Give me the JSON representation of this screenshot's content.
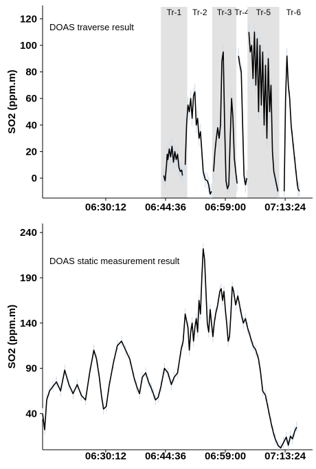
{
  "chart_data": [
    {
      "type": "line",
      "title": "",
      "annotation": "DOAS traverse result",
      "ylabel": "SO2 (ppm.m)",
      "xlabel": "",
      "ylim": [
        -15,
        130
      ],
      "y_ticks": [
        0,
        20,
        40,
        60,
        80,
        100,
        120
      ],
      "x_ticks": [
        "06:30:12",
        "06:44:36",
        "06:59:00",
        "07:13:24"
      ],
      "x_tick_seconds": [
        23412,
        24276,
        25140,
        26004
      ],
      "xlim_seconds": [
        22500,
        26400
      ],
      "traverses": [
        {
          "label": "Tr-1",
          "start": 24210,
          "end": 24590,
          "shaded": true
        },
        {
          "label": "Tr-2",
          "start": 24590,
          "end": 24950,
          "shaded": false
        },
        {
          "label": "Tr-3",
          "start": 24950,
          "end": 25300,
          "shaded": true
        },
        {
          "label": "Tr-4",
          "start": 25300,
          "end": 25460,
          "shaded": false
        },
        {
          "label": "Tr-5",
          "start": 25460,
          "end": 25920,
          "shaded": true
        },
        {
          "label": "Tr-6",
          "start": 25920,
          "end": 26330,
          "shaded": false
        }
      ],
      "series": [
        {
          "segments": [
            [
              [
                24250,
                2
              ],
              [
                24270,
                -2
              ],
              [
                24290,
                10
              ],
              [
                24300,
                18
              ],
              [
                24310,
                14
              ],
              [
                24330,
                22
              ],
              [
                24350,
                16
              ],
              [
                24370,
                24
              ],
              [
                24390,
                12
              ],
              [
                24410,
                20
              ],
              [
                24430,
                14
              ],
              [
                24450,
                18
              ],
              [
                24470,
                8
              ],
              [
                24490,
                5
              ],
              [
                24510,
                6
              ],
              [
                24520,
                2
              ]
            ],
            [
              [
                24560,
                10
              ],
              [
                24580,
                40
              ],
              [
                24600,
                55
              ],
              [
                24620,
                50
              ],
              [
                24640,
                60
              ],
              [
                24660,
                45
              ],
              [
                24680,
                62
              ],
              [
                24700,
                65
              ],
              [
                24720,
                40
              ],
              [
                24740,
                45
              ],
              [
                24760,
                30
              ],
              [
                24780,
                35
              ],
              [
                24800,
                20
              ],
              [
                24820,
                5
              ],
              [
                24850,
                -1
              ],
              [
                24880,
                -2
              ],
              [
                24900,
                -5
              ],
              [
                24920,
                -12
              ],
              [
                24940,
                -10
              ]
            ],
            [
              [
                24970,
                5
              ],
              [
                24990,
                20
              ],
              [
                25010,
                30
              ],
              [
                25030,
                38
              ],
              [
                25050,
                30
              ],
              [
                25070,
                40
              ],
              [
                25090,
                88
              ],
              [
                25110,
                95
              ],
              [
                25130,
                40
              ],
              [
                25150,
                -2
              ],
              [
                25170,
                -8
              ],
              [
                25190,
                -5
              ],
              [
                25210,
                30
              ],
              [
                25230,
                60
              ],
              [
                25250,
                45
              ],
              [
                25270,
                15
              ],
              [
                25290,
                5
              ],
              [
                25310,
                -4
              ]
            ],
            [
              [
                25330,
                92
              ],
              [
                25350,
                85
              ],
              [
                25370,
                80
              ],
              [
                25390,
                40
              ],
              [
                25410,
                2
              ],
              [
                25430,
                -5
              ],
              [
                25450,
                0
              ]
            ],
            [
              [
                25480,
                110
              ],
              [
                25500,
                95
              ],
              [
                25520,
                100
              ],
              [
                25540,
                75
              ],
              [
                25560,
                110
              ],
              [
                25580,
                70
              ],
              [
                25600,
                105
              ],
              [
                25620,
                50
              ],
              [
                25640,
                100
              ],
              [
                25660,
                55
              ],
              [
                25680,
                95
              ],
              [
                25700,
                40
              ],
              [
                25720,
                85
              ],
              [
                25740,
                30
              ],
              [
                25760,
                90
              ],
              [
                25780,
                50
              ],
              [
                25800,
                70
              ],
              [
                25820,
                20
              ],
              [
                25840,
                5
              ],
              [
                25860,
                0
              ],
              [
                25880,
                -5
              ],
              [
                25900,
                -10
              ]
            ],
            [
              [
                25990,
                -10
              ],
              [
                26010,
                60
              ],
              [
                26030,
                92
              ],
              [
                26050,
                70
              ],
              [
                26070,
                60
              ],
              [
                26090,
                40
              ],
              [
                26110,
                30
              ],
              [
                26130,
                20
              ],
              [
                26150,
                10
              ],
              [
                26170,
                0
              ],
              [
                26190,
                -8
              ],
              [
                26210,
                -10
              ]
            ]
          ]
        }
      ]
    },
    {
      "type": "line",
      "title": "",
      "annotation": "DOAS static measurement result",
      "ylabel": "SO2 (ppm.m)",
      "xlabel": "",
      "ylim": [
        0,
        250
      ],
      "y_ticks": [
        40,
        90,
        140,
        190,
        240
      ],
      "x_ticks": [
        "06:30:12",
        "06:44:36",
        "06:59:00",
        "07:13:24"
      ],
      "x_tick_seconds": [
        23412,
        24276,
        25140,
        26004
      ],
      "xlim_seconds": [
        22500,
        26400
      ],
      "series": [
        {
          "points": [
            [
              22500,
              40
            ],
            [
              22530,
              22
            ],
            [
              22560,
              55
            ],
            [
              22600,
              65
            ],
            [
              22650,
              70
            ],
            [
              22700,
              75
            ],
            [
              22760,
              65
            ],
            [
              22820,
              88
            ],
            [
              22880,
              72
            ],
            [
              22940,
              62
            ],
            [
              23000,
              72
            ],
            [
              23060,
              60
            ],
            [
              23120,
              55
            ],
            [
              23180,
              85
            ],
            [
              23240,
              110
            ],
            [
              23280,
              100
            ],
            [
              23320,
              80
            ],
            [
              23350,
              60
            ],
            [
              23380,
              45
            ],
            [
              23420,
              48
            ],
            [
              23460,
              70
            ],
            [
              23520,
              95
            ],
            [
              23580,
              115
            ],
            [
              23640,
              120
            ],
            [
              23700,
              110
            ],
            [
              23760,
              100
            ],
            [
              23820,
              80
            ],
            [
              23860,
              70
            ],
            [
              23900,
              62
            ],
            [
              23940,
              80
            ],
            [
              23990,
              85
            ],
            [
              24030,
              75
            ],
            [
              24070,
              68
            ],
            [
              24100,
              62
            ],
            [
              24130,
              55
            ],
            [
              24170,
              58
            ],
            [
              24210,
              70
            ],
            [
              24260,
              90
            ],
            [
              24310,
              85
            ],
            [
              24360,
              72
            ],
            [
              24400,
              80
            ],
            [
              24450,
              85
            ],
            [
              24500,
              110
            ],
            [
              24530,
              120
            ],
            [
              24560,
              150
            ],
            [
              24600,
              135
            ],
            [
              24620,
              110
            ],
            [
              24640,
              130
            ],
            [
              24660,
              140
            ],
            [
              24680,
              120
            ],
            [
              24700,
              135
            ],
            [
              24720,
              145
            ],
            [
              24740,
              130
            ],
            [
              24760,
              165
            ],
            [
              24780,
              150
            ],
            [
              24800,
              190
            ],
            [
              24820,
              222
            ],
            [
              24840,
              210
            ],
            [
              24860,
              175
            ],
            [
              24880,
              140
            ],
            [
              24900,
              130
            ],
            [
              24920,
              155
            ],
            [
              24940,
              140
            ],
            [
              24960,
              125
            ],
            [
              24980,
              140
            ],
            [
              25000,
              150
            ],
            [
              25030,
              160
            ],
            [
              25060,
              175
            ],
            [
              25080,
              178
            ],
            [
              25100,
              165
            ],
            [
              25120,
              175
            ],
            [
              25140,
              155
            ],
            [
              25160,
              140
            ],
            [
              25180,
              120
            ],
            [
              25200,
              125
            ],
            [
              25220,
              150
            ],
            [
              25240,
              180
            ],
            [
              25260,
              175
            ],
            [
              25290,
              160
            ],
            [
              25320,
              170
            ],
            [
              25350,
              158
            ],
            [
              25370,
              150
            ],
            [
              25400,
              140
            ],
            [
              25430,
              145
            ],
            [
              25460,
              135
            ],
            [
              25500,
              125
            ],
            [
              25540,
              115
            ],
            [
              25580,
              110
            ],
            [
              25620,
              100
            ],
            [
              25650,
              85
            ],
            [
              25680,
              65
            ],
            [
              25720,
              60
            ],
            [
              25760,
              45
            ],
            [
              25800,
              30
            ],
            [
              25830,
              20
            ],
            [
              25860,
              12
            ],
            [
              25900,
              5
            ],
            [
              25940,
              2
            ],
            [
              25980,
              8
            ],
            [
              26020,
              14
            ],
            [
              26050,
              5
            ],
            [
              26080,
              15
            ],
            [
              26110,
              12
            ],
            [
              26140,
              20
            ],
            [
              26170,
              25
            ]
          ]
        }
      ]
    }
  ]
}
